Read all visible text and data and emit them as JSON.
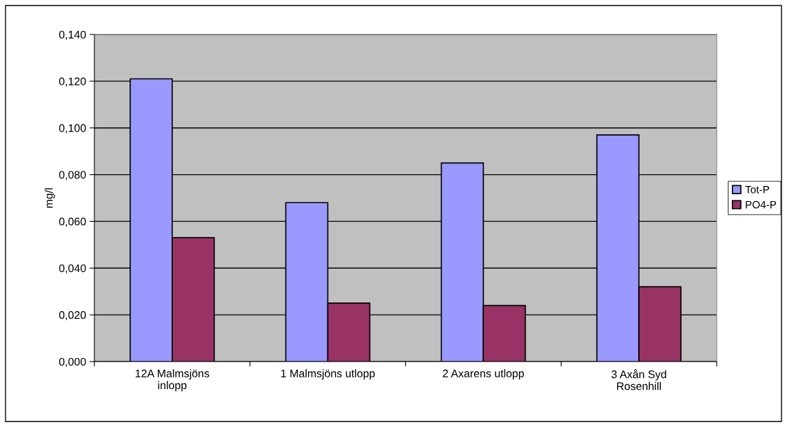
{
  "chart_data": {
    "type": "bar",
    "ylabel": "mg/l",
    "categories": [
      "12A Malmsjöns\ninlopp",
      "1 Malmsjöns utlopp",
      "2 Axarens utlopp",
      "3 Axån Syd\nRosenhill"
    ],
    "series": [
      {
        "name": "Tot-P",
        "color": "#9999ff",
        "values": [
          0.121,
          0.068,
          0.085,
          0.097
        ]
      },
      {
        "name": "PO4-P",
        "color": "#993366",
        "values": [
          0.053,
          0.025,
          0.024,
          0.032
        ]
      }
    ],
    "ylim": [
      0,
      0.14
    ],
    "yticks": [
      {
        "value": 0,
        "label": "0,000"
      },
      {
        "value": 0.02,
        "label": "0,020"
      },
      {
        "value": 0.04,
        "label": "0,040"
      },
      {
        "value": 0.06,
        "label": "0,060"
      },
      {
        "value": 0.08,
        "label": "0,080"
      },
      {
        "value": 0.1,
        "label": "0,100"
      },
      {
        "value": 0.12,
        "label": "0,120"
      },
      {
        "value": 0.14,
        "label": "0,140"
      }
    ],
    "grid": "y",
    "legend": "right"
  }
}
